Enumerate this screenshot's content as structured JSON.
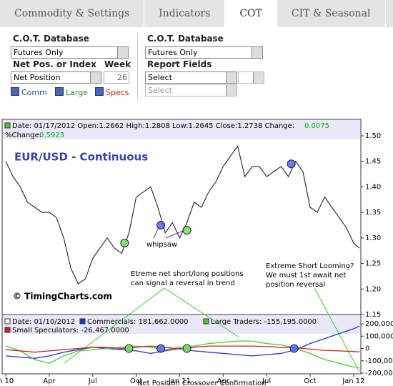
{
  "tabs": [
    "Commodity & Settings",
    "Indicators",
    "COT",
    "CIT & Seasonal"
  ],
  "form": {
    "left": {
      "db_label": "C.O.T. Database",
      "db_value": "Futures Only",
      "netpos_label": "Net Pos. or Index",
      "week_label": "Week",
      "netpos_value": "Net Position",
      "week_value": "26",
      "checks": [
        "Comm",
        "Large",
        "Specs"
      ]
    },
    "right": {
      "db_label": "C.O.T. Database",
      "db_value": "Futures Only",
      "fields_label": "Report Fields",
      "select1": "Select",
      "select2": "Select"
    }
  },
  "chart_data": [
    {
      "type": "line",
      "title": "EUR/USD - Continuous",
      "watermark": "© TimingCharts.com",
      "header": {
        "line1": "Date: 01/17/2012  Open:1.2662  High:1.2808  Low:1.2645  Close:1.2738  Change:",
        "change": "0.0075",
        "line2": "%Change:",
        "pct": "0.5923"
      },
      "annotations": [
        "whipsaw",
        "Etreme net short/long positions",
        "can signal a reversal in trend",
        "Extreme Short Looming?",
        "We must 1st await net",
        "position reversal"
      ],
      "xlim": [
        -0.2,
        24.5
      ],
      "ylim": [
        1.15,
        1.5
      ],
      "yticks": [
        {
          "value": 1.5,
          "label": "1.50"
        },
        1.45,
        {
          "value": 1.4,
          "label": "1.40"
        },
        1.35,
        {
          "value": 1.3,
          "label": "1.30"
        },
        1.25,
        {
          "value": 1.2,
          "label": "1.20"
        },
        1.15
      ],
      "series": [
        {
          "name": "EUR/USD",
          "color": "#222222",
          "x": [
            0,
            0.5,
            1,
            1.5,
            2,
            2.5,
            3,
            3.5,
            4,
            4.5,
            5,
            5.5,
            6,
            6.5,
            7,
            7.5,
            8,
            8.5,
            9,
            9.5,
            10,
            10.5,
            11,
            11.5,
            12,
            12.5,
            13,
            13.5,
            14,
            14.5,
            15,
            15.5,
            16,
            16.5,
            17,
            17.5,
            18,
            18.5,
            19,
            19.5,
            20,
            20.5,
            21,
            21.5,
            22,
            22.5,
            23,
            23.5,
            24,
            24.4
          ],
          "values": [
            1.45,
            1.42,
            1.4,
            1.37,
            1.36,
            1.35,
            1.35,
            1.34,
            1.3,
            1.24,
            1.21,
            1.22,
            1.26,
            1.28,
            1.3,
            1.28,
            1.27,
            1.31,
            1.38,
            1.39,
            1.4,
            1.36,
            1.31,
            1.33,
            1.3,
            1.33,
            1.37,
            1.36,
            1.39,
            1.41,
            1.44,
            1.46,
            1.48,
            1.42,
            1.44,
            1.44,
            1.42,
            1.43,
            1.44,
            1.42,
            1.45,
            1.43,
            1.36,
            1.35,
            1.38,
            1.36,
            1.34,
            1.32,
            1.29,
            1.28
          ]
        }
      ],
      "signals": [
        {
          "x": 8.2,
          "y": 1.29,
          "color": "#77dd55"
        },
        {
          "x": 10.7,
          "y": 1.325,
          "color": "#5566ee"
        },
        {
          "x": 12.5,
          "y": 1.315,
          "color": "#77dd55"
        },
        {
          "x": 19.7,
          "y": 1.445,
          "color": "#5566ee"
        }
      ]
    },
    {
      "type": "line",
      "footnote": "Net Position Crossover Confirmation",
      "header": {
        "date": "Date: 01/10/2012",
        "items": [
          "Commercials: 181,662.0000",
          "Large Traders: -155,195.0000",
          "Small Speculators: -26,467.0000"
        ]
      },
      "xlim": [
        -0.2,
        24.5
      ],
      "ylim": [
        -200000,
        200000
      ],
      "xticks": [
        {
          "value": 0,
          "label": "n 10"
        },
        {
          "value": 3,
          "label": "Apr"
        },
        {
          "value": 6,
          "label": "Jul"
        },
        {
          "value": 9,
          "label": "Oct"
        },
        {
          "value": 12,
          "label": "Jan 11"
        },
        {
          "value": 15,
          "label": "Apr"
        },
        {
          "value": 18,
          "label": "Jul"
        },
        {
          "value": 21,
          "label": "Oct"
        },
        {
          "value": 24,
          "label": "Jan 12"
        }
      ],
      "yticks": [
        {
          "value": 200000,
          "label": "200,000"
        },
        {
          "value": 100000,
          "label": "100,000"
        },
        0,
        {
          "value": -100000,
          "label": "-100,000"
        },
        {
          "value": -200000,
          "label": "-200,000"
        }
      ],
      "x": [
        0,
        1,
        2,
        3,
        4,
        5,
        6,
        7,
        8,
        9,
        10,
        11,
        12,
        13,
        14,
        15,
        16,
        17,
        18,
        19,
        20,
        21,
        22,
        23,
        24,
        24.4
      ],
      "series": [
        {
          "name": "Commercials",
          "color": "#2233cc",
          "values": [
            -60000,
            -70000,
            -80000,
            -60000,
            -30000,
            -10000,
            10000,
            0,
            -10000,
            -20000,
            -40000,
            -20000,
            0,
            -20000,
            -30000,
            -40000,
            -50000,
            -60000,
            -50000,
            -40000,
            -10000,
            40000,
            80000,
            120000,
            160000,
            181662
          ]
        },
        {
          "name": "Large Traders",
          "color": "#44cc33",
          "values": [
            20000,
            -20000,
            -90000,
            -120000,
            -60000,
            -20000,
            -10000,
            0,
            10000,
            20000,
            10000,
            -10000,
            10000,
            20000,
            40000,
            50000,
            60000,
            60000,
            40000,
            30000,
            0,
            -40000,
            -90000,
            -120000,
            -150000,
            -155195
          ]
        },
        {
          "name": "Small Speculators",
          "color": "#cc2222",
          "values": [
            -10000,
            -20000,
            -30000,
            -20000,
            -10000,
            0,
            10000,
            10000,
            0,
            10000,
            20000,
            10000,
            -5000,
            10000,
            20000,
            20000,
            20000,
            20000,
            15000,
            10000,
            5000,
            -5000,
            -15000,
            -20000,
            -25000,
            -26467
          ]
        }
      ],
      "signals": [
        {
          "x": 8.5,
          "y": 0,
          "color": "#77dd55"
        },
        {
          "x": 10.7,
          "y": 0,
          "color": "#5566ee"
        },
        {
          "x": 12.5,
          "y": 0,
          "color": "#77dd55"
        },
        {
          "x": 19.9,
          "y": 0,
          "color": "#5566ee"
        }
      ]
    }
  ]
}
